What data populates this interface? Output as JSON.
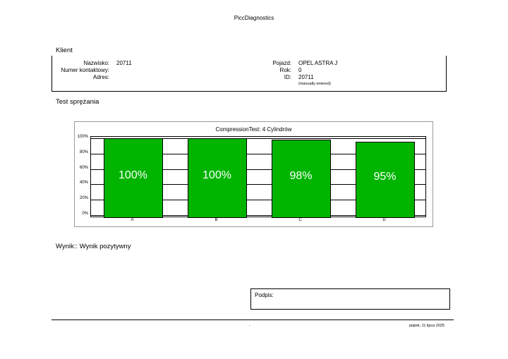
{
  "header": {
    "app_title": "PiccDiagnostics"
  },
  "client": {
    "section_title": "Klient",
    "left_labels": [
      "Nazwisko:",
      "Numer kontaktowy:",
      "Adres:"
    ],
    "left_values": [
      "20711",
      "",
      ""
    ],
    "right_labels": [
      "Pojazd:",
      "Rok:",
      "ID:"
    ],
    "right_values": [
      "OPEL ASTRA J",
      "0",
      "20711"
    ],
    "id_note": "(manually entered)"
  },
  "test": {
    "section_title": "Test sprężania"
  },
  "chart_data": {
    "type": "bar",
    "title": "CompressionTest: 4 Cylindrów",
    "categories": [
      "A",
      "B",
      "C",
      "D"
    ],
    "values": [
      100,
      100,
      98,
      95
    ],
    "value_labels": [
      "100%",
      "100%",
      "98%",
      "95%"
    ],
    "y_ticks": [
      "0%",
      "20%",
      "40%",
      "60%",
      "80%",
      "100%"
    ],
    "ylim": [
      0,
      100
    ],
    "grid": true,
    "bar_color": "#00b400"
  },
  "result": {
    "text": "Wynik:: Wynik pozytywny"
  },
  "signature": {
    "label": "Podpis:"
  },
  "footer": {
    "center": "-",
    "date": "piątek, 11 lipca 2025"
  }
}
